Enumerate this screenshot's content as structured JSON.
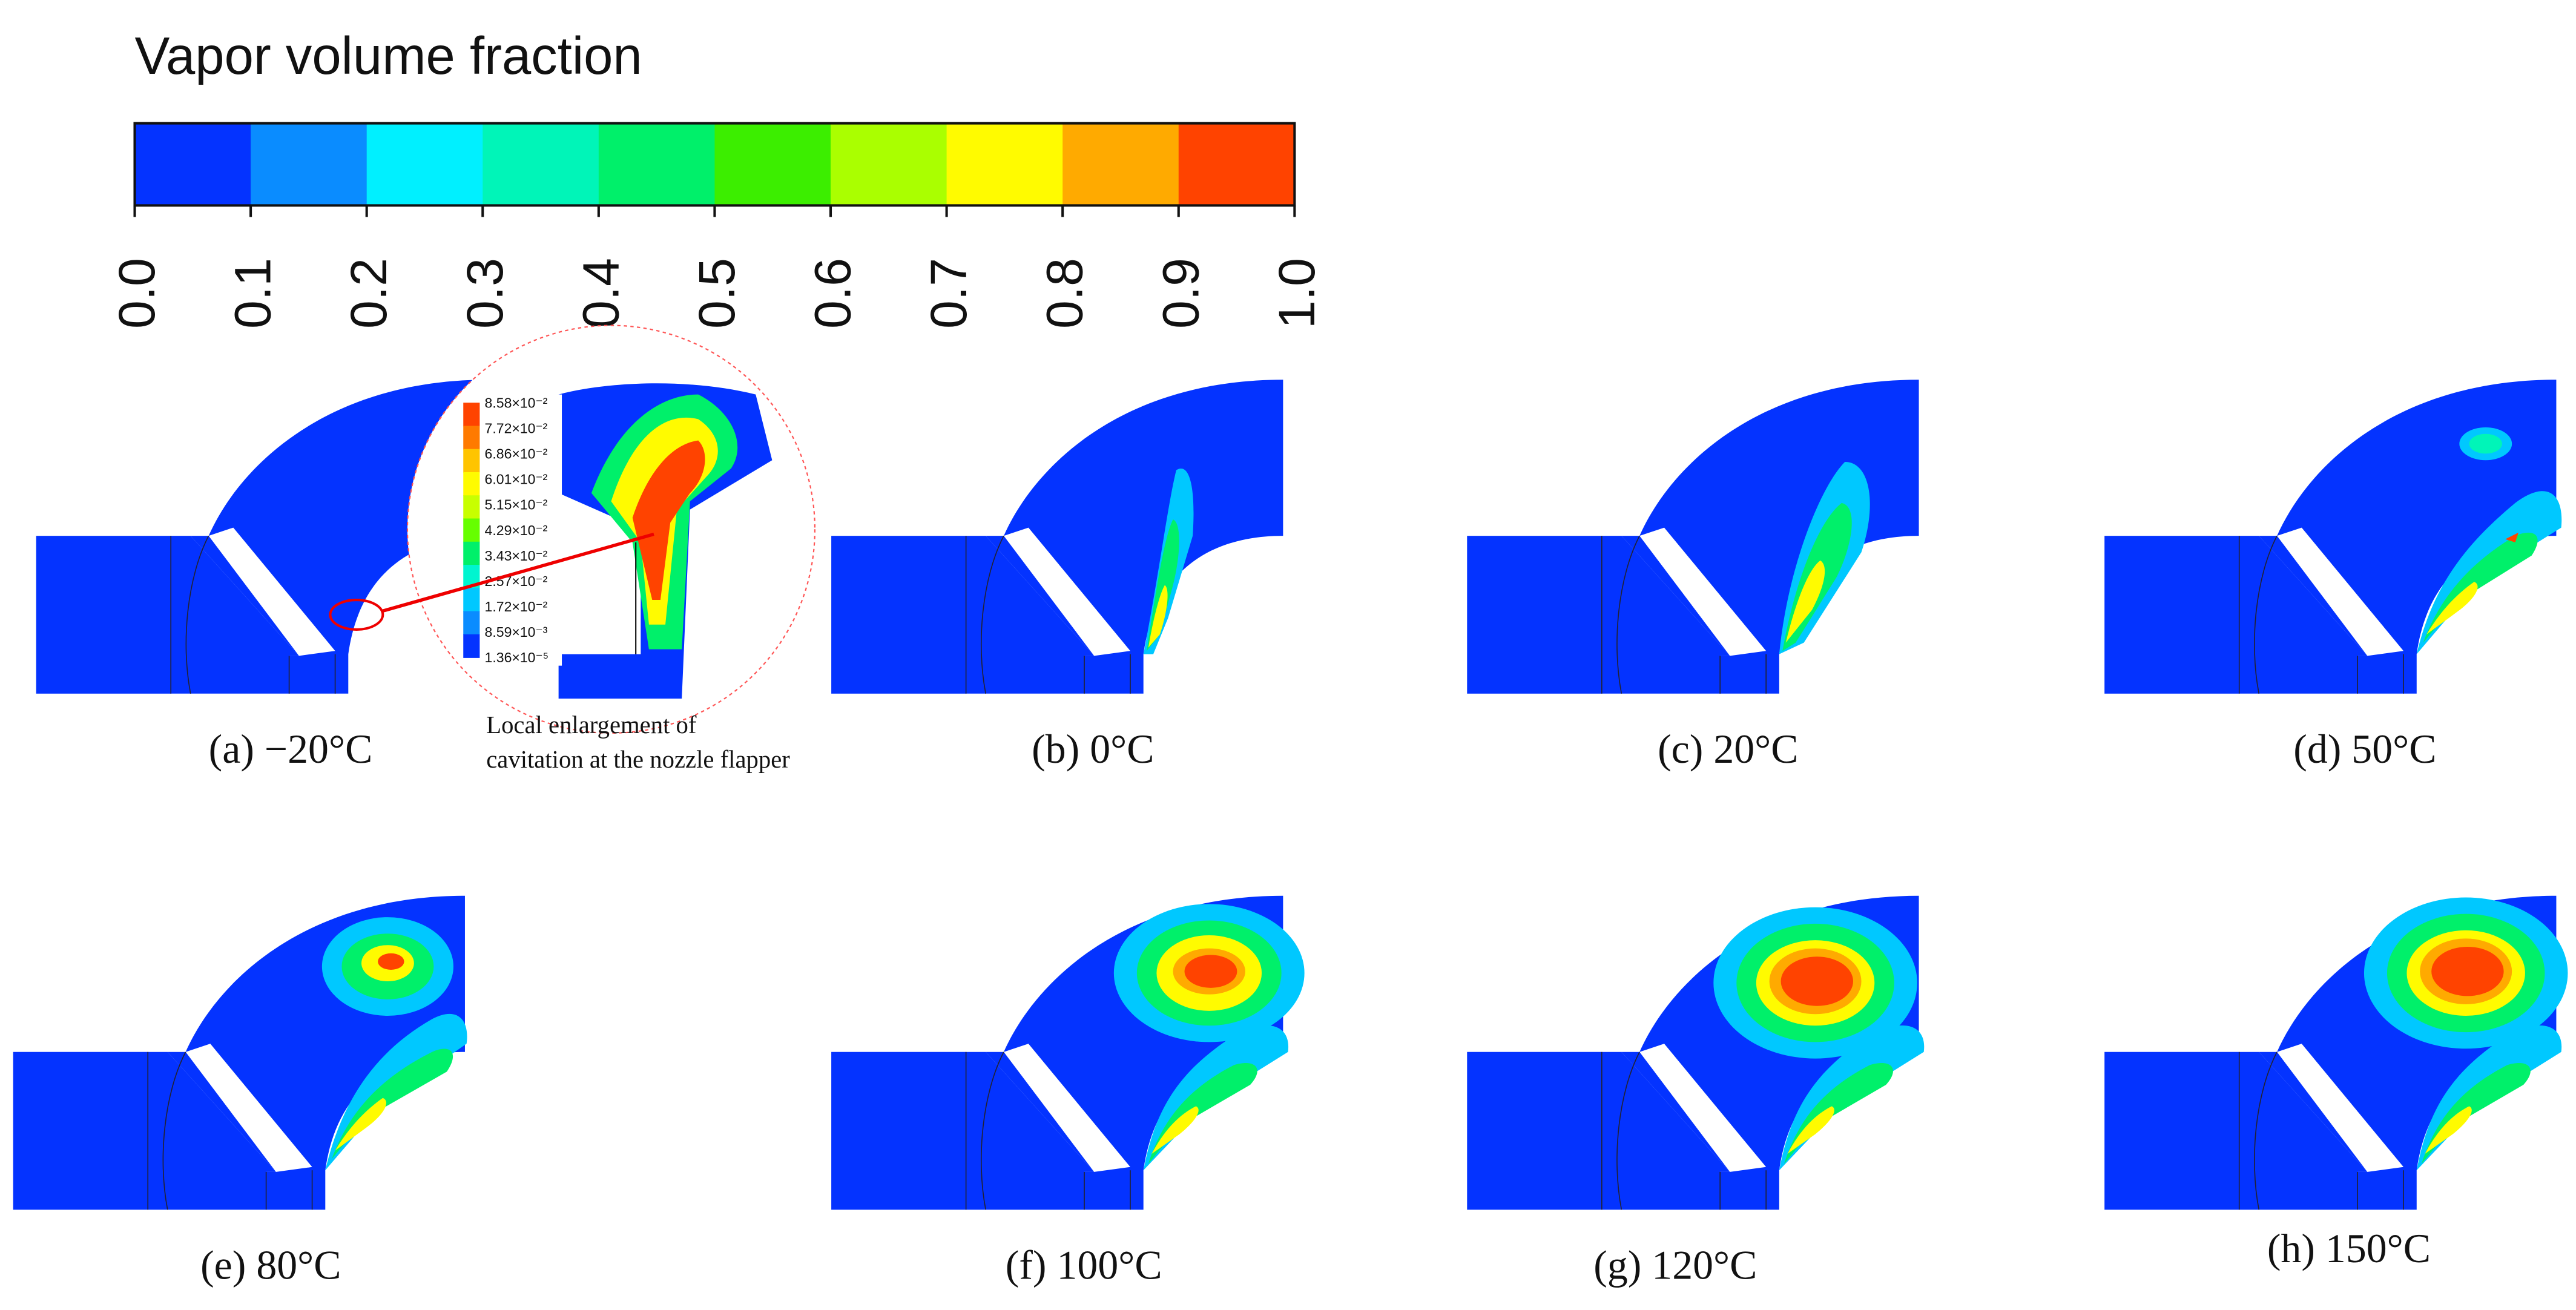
{
  "colorbar": {
    "title": "Vapor volume fraction",
    "ticks": [
      "0.0",
      "0.1",
      "0.2",
      "0.3",
      "0.4",
      "0.5",
      "0.6",
      "0.7",
      "0.8",
      "0.9",
      "1.0"
    ],
    "colors": [
      "#0433ff",
      "#0a8cff",
      "#00f0ff",
      "#00f5b8",
      "#00f06a",
      "#3cee00",
      "#aaff00",
      "#fffb00",
      "#ffaa00",
      "#ff4300"
    ]
  },
  "enlargement": {
    "legend_ticks": [
      "8.58×10⁻²",
      "7.72×10⁻²",
      "6.86×10⁻²",
      "6.01×10⁻²",
      "5.15×10⁻²",
      "4.29×10⁻²",
      "3.43×10⁻²",
      "2.57×10⁻²",
      "1.72×10⁻²",
      "8.59×10⁻³",
      "1.36×10⁻⁵"
    ],
    "legend_colors": [
      "#ff4300",
      "#ff7a00",
      "#ffc400",
      "#fffb00",
      "#c8ff00",
      "#66ff00",
      "#00f06a",
      "#00f5d0",
      "#00c8ff",
      "#0a8cff",
      "#0433ff"
    ],
    "caption_line1": "Local enlargement of",
    "caption_line2": "cavitation at the nozzle flapper"
  },
  "panels": [
    {
      "label": "(a) −20°C"
    },
    {
      "label": "(b) 0°C"
    },
    {
      "label": "(c) 20°C"
    },
    {
      "label": "(d) 50°C"
    },
    {
      "label": "(e) 80°C"
    },
    {
      "label": "(f) 100°C"
    },
    {
      "label": "(g) 120°C"
    },
    {
      "label": "(h) 150°C"
    }
  ]
}
